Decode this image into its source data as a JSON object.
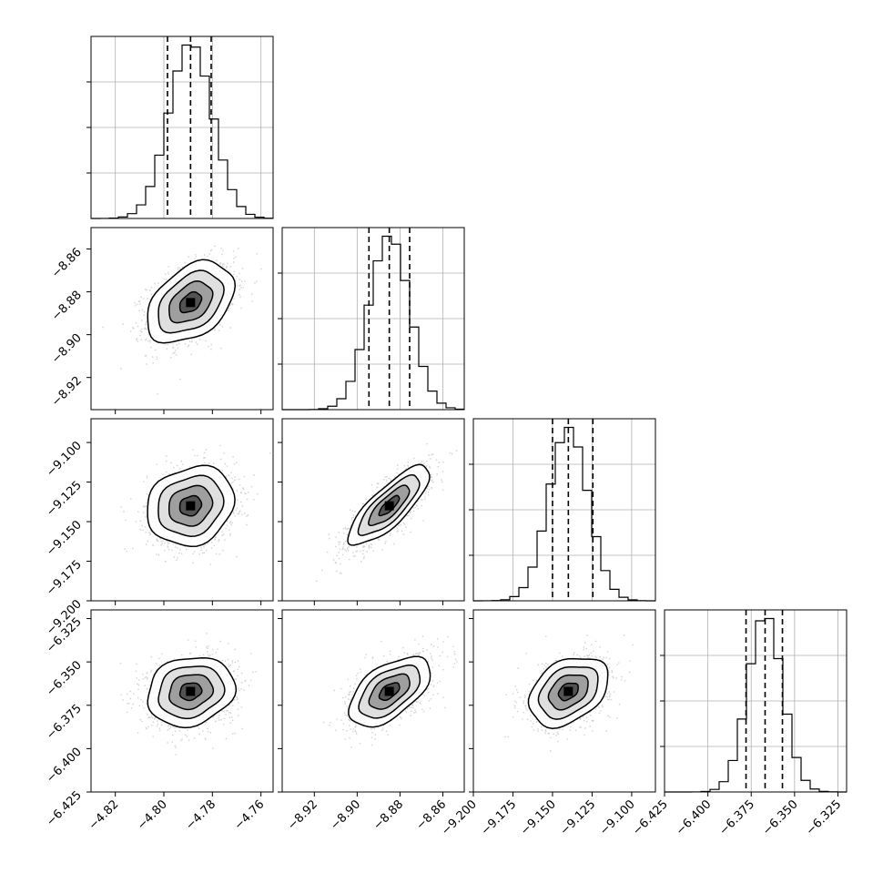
{
  "chart_data": {
    "type": "corner",
    "parameters": [
      {
        "median": -4.789,
        "q16": -4.7985,
        "q84": -4.7805,
        "sigma": 0.009,
        "range": [
          -4.83,
          -4.755
        ],
        "ticks": [
          -4.82,
          -4.8,
          -4.78,
          -4.76
        ],
        "tick_labels": [
          "−4.82",
          "−4.80",
          "−4.78",
          "−4.76"
        ]
      },
      {
        "median": -8.885,
        "q16": -8.8945,
        "q84": -8.8755,
        "sigma": 0.0095,
        "range": [
          -8.935,
          -8.85
        ],
        "ticks": [
          -8.92,
          -8.9,
          -8.88,
          -8.86
        ],
        "tick_labels": [
          "−8.92",
          "−8.90",
          "−8.88",
          "−8.86"
        ]
      },
      {
        "median": -9.14,
        "q16": -9.15,
        "q84": -9.1245,
        "sigma": 0.0125,
        "range": [
          -9.2,
          -9.085
        ],
        "ticks": [
          -9.2,
          -9.175,
          -9.15,
          -9.125,
          -9.1
        ],
        "tick_labels": [
          "−9.200",
          "−9.175",
          "−9.150",
          "−9.125",
          "−9.100"
        ]
      },
      {
        "median": -6.367,
        "q16": -6.378,
        "q84": -6.357,
        "sigma": 0.01,
        "range": [
          -6.425,
          -6.32
        ],
        "ticks": [
          -6.425,
          -6.4,
          -6.375,
          -6.35,
          -6.325
        ],
        "tick_labels": [
          "−6.425",
          "−6.400",
          "−6.375",
          "−6.350",
          "−6.325"
        ]
      }
    ],
    "correlations": {
      "1-0": 0.4,
      "2-0": 0.15,
      "2-1": 0.8,
      "3-0": 0.15,
      "3-1": 0.55,
      "3-2": 0.35
    },
    "histogram_bins": 20,
    "samples_per_panel": 1400,
    "quantiles": [
      0.16,
      0.5,
      0.84
    ],
    "grid": true,
    "colors": {
      "line": "#000000",
      "points": "#9a9a9a",
      "grid": "#b0b0b0"
    }
  }
}
